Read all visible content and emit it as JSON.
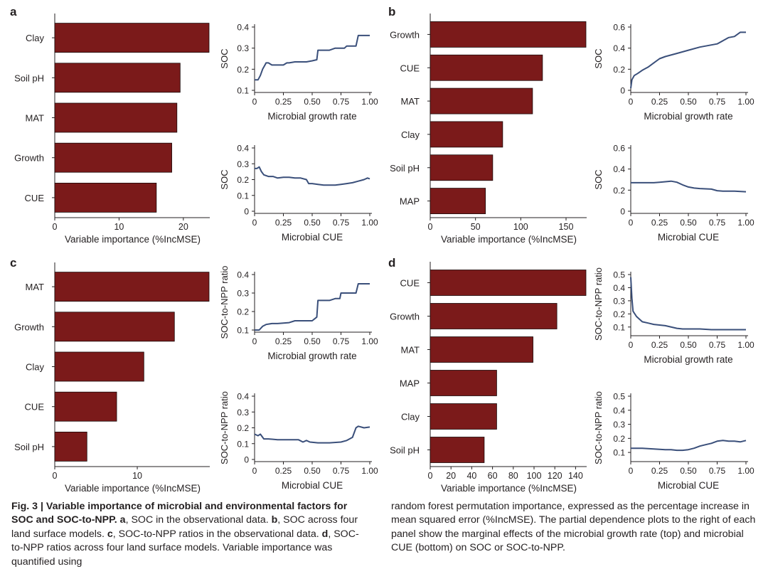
{
  "colors": {
    "bar": "#7b1a1a",
    "line": "#3a4f7a",
    "axis": "#231f20",
    "text": "#231f20"
  },
  "caption": {
    "fig_label": "Fig. 3 |",
    "title": "Variable importance of microbial and environmental factors for SOC and SOC-to-NPP.",
    "a_tag": "a",
    "a_text": ", SOC in the observational data.",
    "b_tag": "b",
    "b_text": ", SOC across four land surface models.",
    "c_tag": "c",
    "c_text": ", SOC-to-NPP ratios in the observational data.",
    "d_tag": "d",
    "d_text": ", SOC-to-NPP ratios across four land surface models. Variable importance was quantified using",
    "right_text": "random forest permutation importance, expressed as the percentage increase in mean squared error (%IncMSE). The partial dependence plots to the right of each panel show the marginal effects of the microbial growth rate (top) and microbial CUE (bottom) on SOC or SOC-to-NPP."
  },
  "chart_data": [
    {
      "panel": "a",
      "type": "bar",
      "orientation": "horizontal",
      "categories": [
        "Clay",
        "Soil pH",
        "MAT",
        "Growth",
        "CUE"
      ],
      "values": [
        24,
        19.5,
        19,
        18.2,
        15.8
      ],
      "xlim": [
        0,
        24
      ],
      "xticks": [
        0,
        10,
        20
      ],
      "xlabel": "Variable importance (%IncMSE)"
    },
    {
      "panel": "a",
      "type": "line",
      "ylabel": "SOC",
      "xlabel": "Microbial growth rate",
      "xlim": [
        0,
        1
      ],
      "ylim": [
        0.1,
        0.4
      ],
      "xticks": [
        "0",
        "0.25",
        "0.50",
        "0.75",
        "1.00"
      ],
      "yticks": [
        "0.1",
        "0.2",
        "0.3",
        "0.4"
      ],
      "x": [
        0,
        0.03,
        0.05,
        0.07,
        0.09,
        0.1,
        0.12,
        0.15,
        0.18,
        0.22,
        0.25,
        0.28,
        0.3,
        0.35,
        0.42,
        0.45,
        0.5,
        0.54,
        0.55,
        0.6,
        0.65,
        0.7,
        0.72,
        0.78,
        0.8,
        0.88,
        0.9,
        0.95,
        0.98,
        1.0
      ],
      "y": [
        0.15,
        0.15,
        0.17,
        0.2,
        0.22,
        0.23,
        0.23,
        0.22,
        0.22,
        0.22,
        0.22,
        0.23,
        0.23,
        0.235,
        0.235,
        0.235,
        0.24,
        0.245,
        0.29,
        0.29,
        0.29,
        0.3,
        0.3,
        0.3,
        0.31,
        0.31,
        0.36,
        0.36,
        0.36,
        0.36
      ]
    },
    {
      "panel": "a",
      "type": "line",
      "ylabel": "SOC",
      "xlabel": "Microbial CUE",
      "xlim": [
        0,
        1
      ],
      "ylim": [
        0,
        0.4
      ],
      "xticks": [
        "0",
        "0.25",
        "0.50",
        "0.75",
        "1.00"
      ],
      "yticks": [
        "0",
        "0.1",
        "0.2",
        "0.3",
        "0.4"
      ],
      "x": [
        0,
        0.02,
        0.04,
        0.06,
        0.08,
        0.12,
        0.16,
        0.2,
        0.25,
        0.3,
        0.35,
        0.4,
        0.45,
        0.47,
        0.5,
        0.55,
        0.6,
        0.65,
        0.7,
        0.75,
        0.8,
        0.85,
        0.9,
        0.95,
        0.98,
        1.0
      ],
      "y": [
        0.27,
        0.27,
        0.28,
        0.25,
        0.23,
        0.22,
        0.22,
        0.21,
        0.215,
        0.215,
        0.21,
        0.21,
        0.2,
        0.175,
        0.175,
        0.17,
        0.165,
        0.165,
        0.165,
        0.17,
        0.175,
        0.18,
        0.19,
        0.2,
        0.21,
        0.205
      ]
    },
    {
      "panel": "b",
      "type": "bar",
      "orientation": "horizontal",
      "categories": [
        "Growth",
        "CUE",
        "MAT",
        "Clay",
        "Soil pH",
        "MAP"
      ],
      "values": [
        172,
        124,
        113,
        80,
        69,
        61
      ],
      "xlim": [
        0,
        172
      ],
      "xticks": [
        0,
        50,
        100,
        150
      ],
      "xlabel": "Variable importance (%IncMSE)"
    },
    {
      "panel": "b",
      "type": "line",
      "ylabel": "SOC",
      "xlabel": "Microbial growth rate",
      "xlim": [
        0,
        1
      ],
      "ylim": [
        0,
        0.6
      ],
      "xticks": [
        "0",
        "0.25",
        "0.50",
        "0.75",
        "1.00"
      ],
      "yticks": [
        "0",
        "0.2",
        "0.4",
        "0.6"
      ],
      "x": [
        0,
        0.01,
        0.03,
        0.06,
        0.1,
        0.15,
        0.2,
        0.25,
        0.3,
        0.4,
        0.5,
        0.6,
        0.7,
        0.75,
        0.8,
        0.85,
        0.9,
        0.95,
        0.97,
        1.0
      ],
      "y": [
        0.02,
        0.1,
        0.14,
        0.16,
        0.19,
        0.22,
        0.26,
        0.3,
        0.32,
        0.35,
        0.38,
        0.41,
        0.43,
        0.44,
        0.47,
        0.5,
        0.51,
        0.55,
        0.55,
        0.55
      ]
    },
    {
      "panel": "b",
      "type": "line",
      "ylabel": "SOC",
      "xlabel": "Microbial CUE",
      "xlim": [
        0,
        1
      ],
      "ylim": [
        0,
        0.6
      ],
      "xticks": [
        "0",
        "0.25",
        "0.50",
        "0.75",
        "1.00"
      ],
      "yticks": [
        "0",
        "0.2",
        "0.4",
        "0.6"
      ],
      "x": [
        0,
        0.1,
        0.2,
        0.25,
        0.3,
        0.35,
        0.4,
        0.45,
        0.5,
        0.55,
        0.6,
        0.7,
        0.75,
        0.8,
        0.9,
        1.0
      ],
      "y": [
        0.27,
        0.27,
        0.27,
        0.275,
        0.28,
        0.285,
        0.275,
        0.25,
        0.23,
        0.22,
        0.215,
        0.21,
        0.195,
        0.19,
        0.19,
        0.185
      ]
    },
    {
      "panel": "c",
      "type": "bar",
      "orientation": "horizontal",
      "categories": [
        "MAT",
        "Growth",
        "Clay",
        "CUE",
        "Soil pH"
      ],
      "values": [
        18.7,
        14.5,
        10.8,
        7.5,
        3.9
      ],
      "xlim": [
        0,
        18.7
      ],
      "xticks": [
        0,
        10
      ],
      "xlabel": "Variable importance (%IncMSE)"
    },
    {
      "panel": "c",
      "type": "line",
      "ylabel": "SOC-to-NPP ratio",
      "xlabel": "Microbial growth rate",
      "xlim": [
        0,
        1
      ],
      "ylim": [
        0.1,
        0.4
      ],
      "xticks": [
        "0",
        "0.25",
        "0.50",
        "0.75",
        "1.00"
      ],
      "yticks": [
        "0.1",
        "0.2",
        "0.3",
        "0.4"
      ],
      "x": [
        0,
        0.04,
        0.07,
        0.1,
        0.15,
        0.2,
        0.3,
        0.35,
        0.45,
        0.5,
        0.54,
        0.55,
        0.6,
        0.65,
        0.7,
        0.74,
        0.75,
        0.8,
        0.88,
        0.9,
        0.95,
        1.0
      ],
      "y": [
        0.1,
        0.1,
        0.12,
        0.13,
        0.135,
        0.135,
        0.14,
        0.15,
        0.15,
        0.15,
        0.17,
        0.26,
        0.26,
        0.26,
        0.27,
        0.27,
        0.3,
        0.3,
        0.3,
        0.35,
        0.35,
        0.35
      ]
    },
    {
      "panel": "c",
      "type": "line",
      "ylabel": "SOC-to-NPP ratio",
      "xlabel": "Microbial CUE",
      "xlim": [
        0,
        1
      ],
      "ylim": [
        0,
        0.4
      ],
      "xticks": [
        "0",
        "0.25",
        "0.50",
        "0.75",
        "1.00"
      ],
      "yticks": [
        "0",
        "0.1",
        "0.2",
        "0.3",
        "0.4"
      ],
      "x": [
        0,
        0.03,
        0.05,
        0.08,
        0.12,
        0.2,
        0.3,
        0.38,
        0.42,
        0.45,
        0.48,
        0.55,
        0.65,
        0.75,
        0.8,
        0.85,
        0.88,
        0.9,
        0.95,
        1.0
      ],
      "y": [
        0.16,
        0.15,
        0.16,
        0.13,
        0.13,
        0.125,
        0.125,
        0.125,
        0.11,
        0.12,
        0.11,
        0.105,
        0.105,
        0.11,
        0.12,
        0.14,
        0.2,
        0.21,
        0.2,
        0.205
      ]
    },
    {
      "panel": "d",
      "type": "bar",
      "orientation": "horizontal",
      "categories": [
        "CUE",
        "Growth",
        "MAT",
        "MAP",
        "Clay",
        "Soil pH"
      ],
      "values": [
        150,
        122,
        99,
        64,
        64,
        52
      ],
      "xlim": [
        0,
        150
      ],
      "xticks": [
        0,
        20,
        40,
        60,
        80,
        100,
        120,
        140
      ],
      "xlabel": "Variable importance (%IncMSE)"
    },
    {
      "panel": "d",
      "type": "line",
      "ylabel": "SOC-to-NPP ratio",
      "xlabel": "Microbial growth rate",
      "xlim": [
        0,
        1
      ],
      "ylim": [
        0.05,
        0.5
      ],
      "xticks": [
        "0",
        "0.25",
        "0.50",
        "0.75",
        "1.00"
      ],
      "yticks": [
        "0.1",
        "0.2",
        "0.3",
        "0.4",
        "0.5"
      ],
      "x": [
        0,
        0.01,
        0.02,
        0.05,
        0.1,
        0.15,
        0.2,
        0.3,
        0.4,
        0.45,
        0.5,
        0.6,
        0.7,
        0.8,
        0.9,
        1.0
      ],
      "y": [
        0.48,
        0.32,
        0.22,
        0.18,
        0.14,
        0.13,
        0.12,
        0.11,
        0.09,
        0.085,
        0.085,
        0.085,
        0.08,
        0.08,
        0.08,
        0.08
      ]
    },
    {
      "panel": "d",
      "type": "line",
      "ylabel": "SOC-to-NPP ratio",
      "xlabel": "Microbial CUE",
      "xlim": [
        0,
        1
      ],
      "ylim": [
        0.05,
        0.5
      ],
      "xticks": [
        "0",
        "0.25",
        "0.50",
        "0.75",
        "1.00"
      ],
      "yticks": [
        "0.1",
        "0.2",
        "0.3",
        "0.4",
        "0.5"
      ],
      "x": [
        0,
        0.1,
        0.2,
        0.3,
        0.35,
        0.4,
        0.45,
        0.5,
        0.55,
        0.6,
        0.65,
        0.7,
        0.75,
        0.8,
        0.85,
        0.9,
        0.95,
        1.0
      ],
      "y": [
        0.13,
        0.13,
        0.125,
        0.12,
        0.12,
        0.115,
        0.115,
        0.12,
        0.13,
        0.145,
        0.155,
        0.165,
        0.18,
        0.185,
        0.18,
        0.18,
        0.175,
        0.185
      ]
    }
  ]
}
